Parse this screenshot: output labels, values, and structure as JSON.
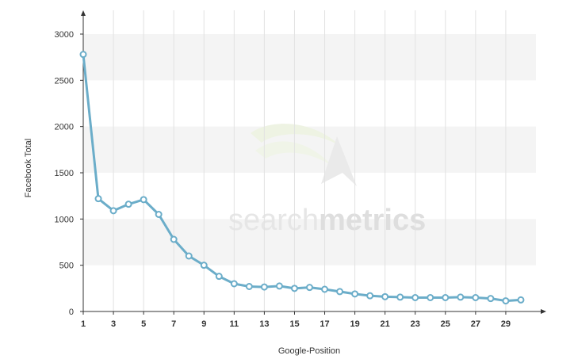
{
  "chart_data": {
    "type": "line",
    "title": "",
    "xlabel": "Google-Position",
    "ylabel": "Facebook Total",
    "xlim": [
      1,
      31
    ],
    "ylim": [
      0,
      3000
    ],
    "x_ticks": [
      1,
      3,
      5,
      7,
      9,
      11,
      13,
      15,
      17,
      19,
      21,
      23,
      25,
      27,
      29
    ],
    "y_ticks": [
      0,
      500,
      1000,
      1500,
      2000,
      2500,
      3000
    ],
    "grid": "vertical lines at odd positions, alternating horizontal bands",
    "legend": "none",
    "watermark": {
      "light": "search",
      "bold": "metrics"
    },
    "series": [
      {
        "color": "#6badc9",
        "x": [
          1,
          2,
          3,
          4,
          5,
          6,
          7,
          8,
          9,
          10,
          11,
          12,
          13,
          14,
          15,
          16,
          17,
          18,
          19,
          20,
          21,
          22,
          23,
          24,
          25,
          26,
          27,
          28,
          29,
          30
        ],
        "y": [
          2780,
          1220,
          1090,
          1160,
          1210,
          1050,
          780,
          600,
          500,
          380,
          300,
          270,
          265,
          275,
          250,
          260,
          240,
          215,
          190,
          170,
          160,
          155,
          150,
          150,
          150,
          155,
          150,
          140,
          115,
          125
        ]
      }
    ]
  }
}
